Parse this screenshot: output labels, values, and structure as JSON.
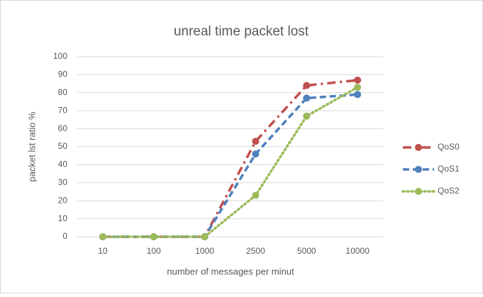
{
  "chart_data": {
    "type": "line",
    "title": "unreal time packet lost",
    "x_label": "number of messages per minut",
    "y_label": "packet lst ratio %",
    "categories": [
      "10",
      "100",
      "1000",
      "2500",
      "5000",
      "10000"
    ],
    "series": [
      {
        "name": "QoS0",
        "color": "#c0504d",
        "dash": "12 6 3 6",
        "values": [
          0,
          0,
          0,
          53,
          84,
          87
        ]
      },
      {
        "name": "QoS1",
        "color": "#4f81bd",
        "dash": "9 5",
        "values": [
          0,
          0,
          0,
          46,
          77,
          79
        ]
      },
      {
        "name": "QoS2",
        "color": "#9bbb59",
        "dash": "2 4",
        "values": [
          0,
          0,
          0,
          23,
          67,
          83
        ]
      }
    ],
    "ylim": [
      0,
      100
    ],
    "yticks": [
      0,
      10,
      20,
      30,
      40,
      50,
      60,
      70,
      80,
      90,
      100
    ],
    "grid": true,
    "legend": "right"
  }
}
